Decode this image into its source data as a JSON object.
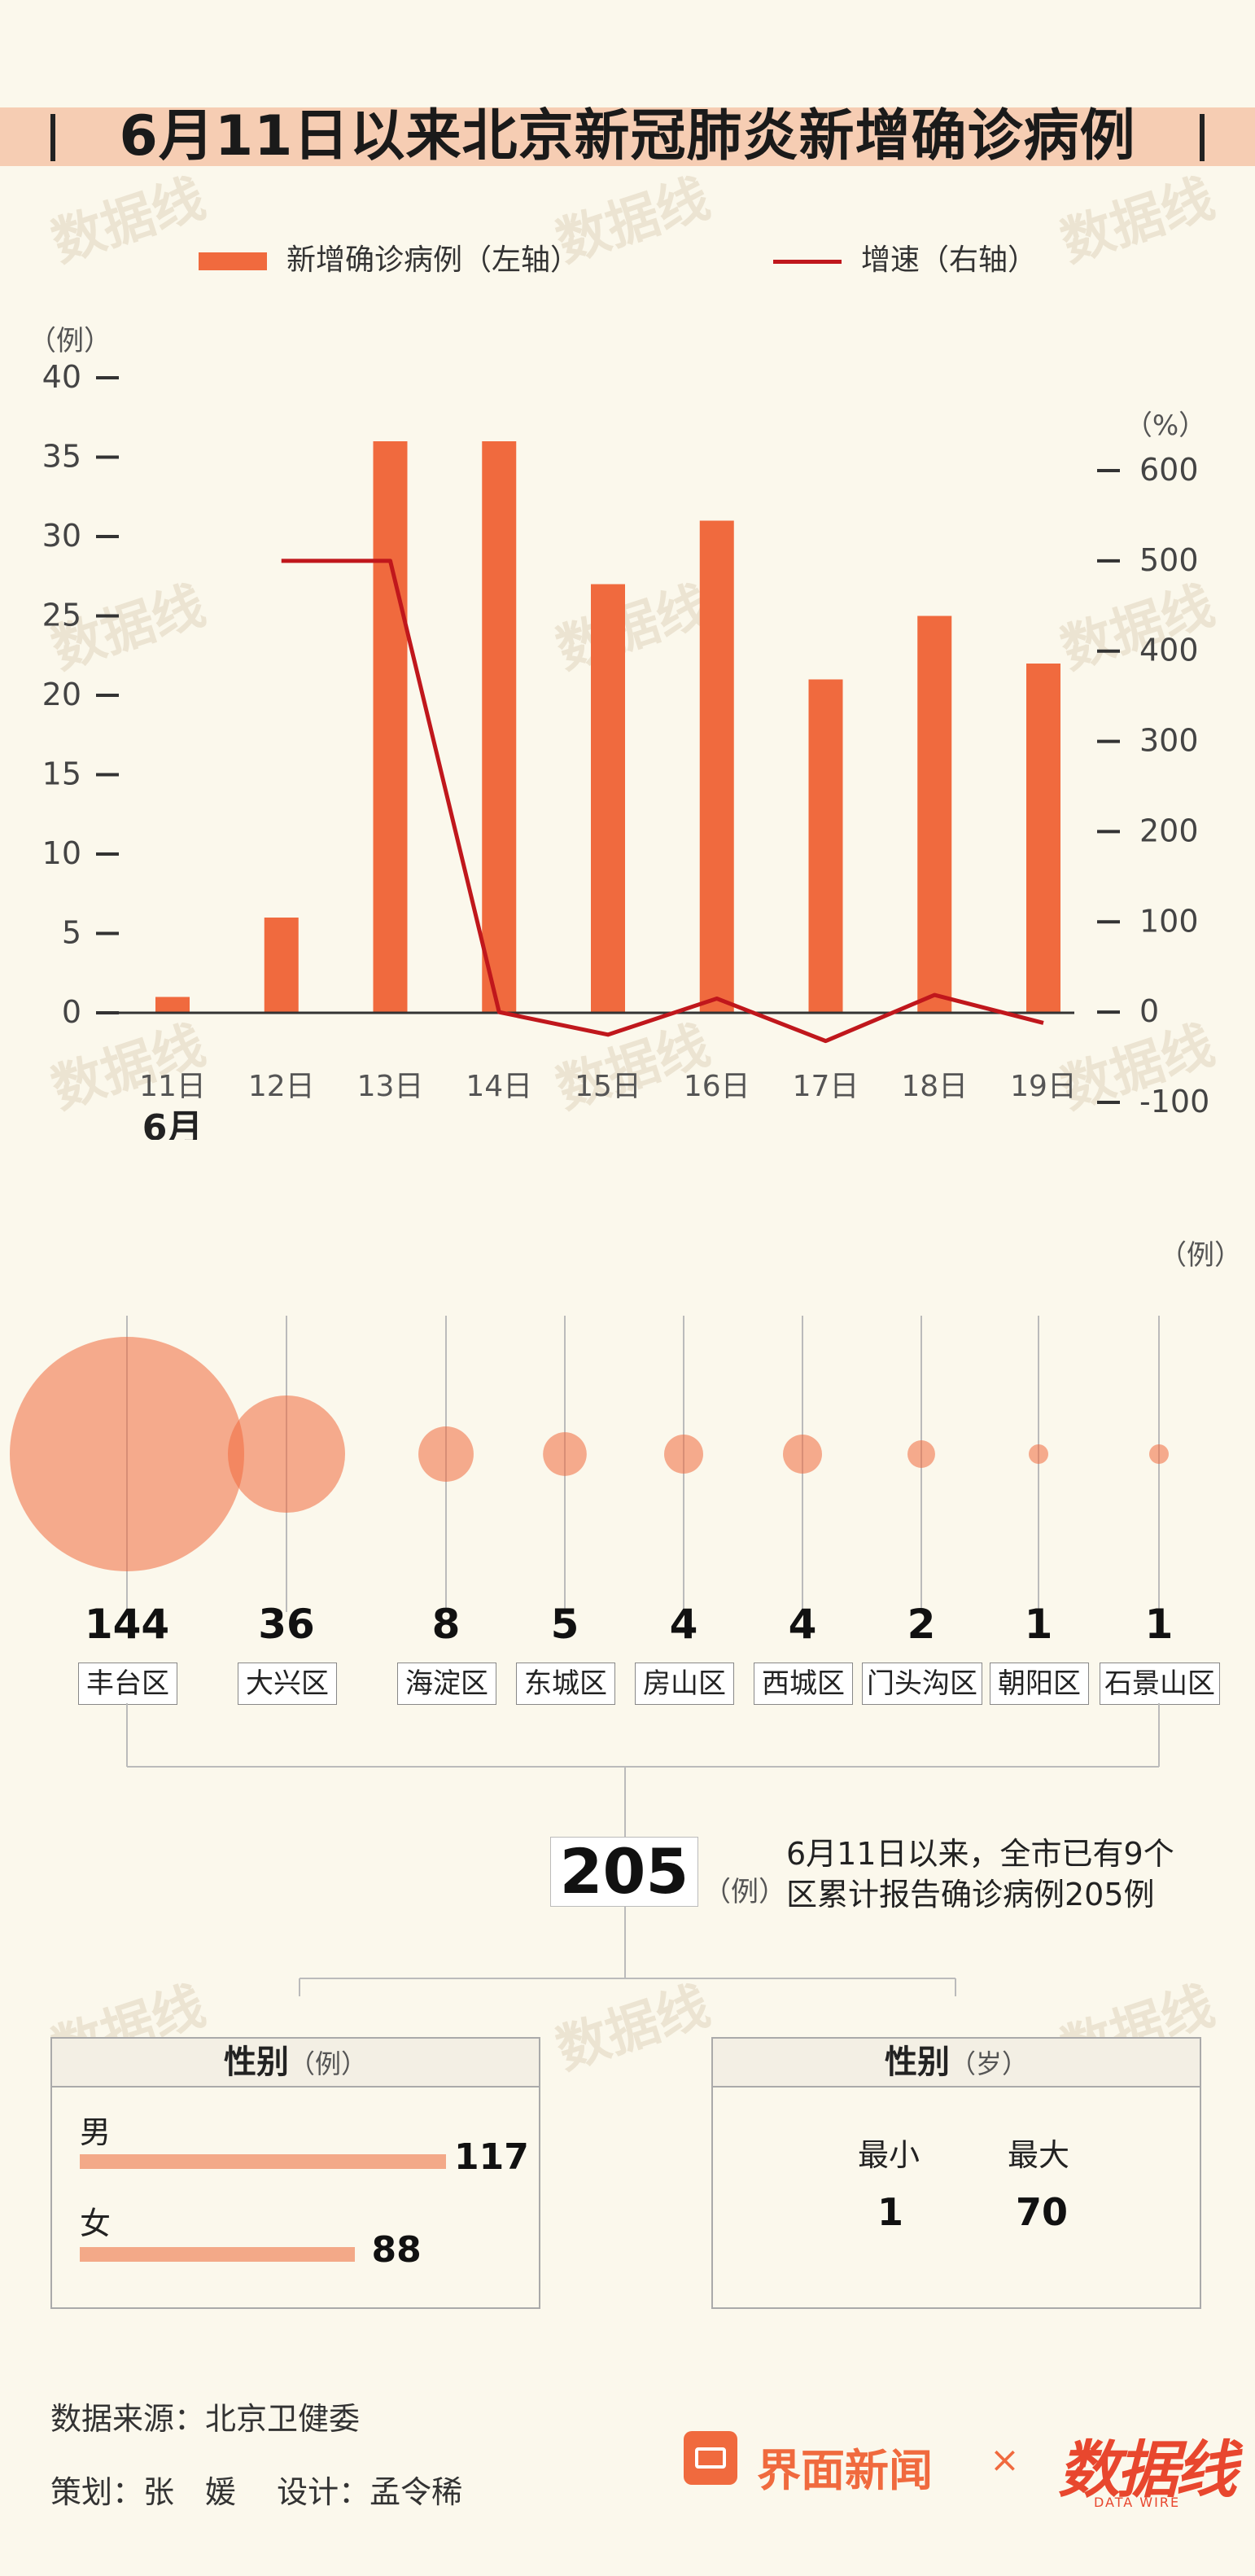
{
  "title": "6月11日以来北京新冠肺炎新增确诊病例",
  "legend": {
    "bar_label": "新增确诊病例（左轴）",
    "line_label": "增速（右轴）"
  },
  "axes": {
    "left_unit": "（例）",
    "right_unit": "（%）",
    "month_label": "6月",
    "district_unit": "（例）"
  },
  "colors": {
    "bar": "#f06a3e",
    "line": "#c0171c",
    "bubble": "#f06a3e",
    "panel_bar": "#f3a988"
  },
  "chart_data": {
    "type": "bar",
    "categories": [
      "11日",
      "12日",
      "13日",
      "14日",
      "15日",
      "16日",
      "17日",
      "18日",
      "19日"
    ],
    "series": [
      {
        "name": "新增确诊病例（左轴）",
        "axis": "left",
        "type": "bar",
        "values": [
          1,
          6,
          36,
          36,
          27,
          31,
          21,
          25,
          22
        ]
      },
      {
        "name": "增速（右轴）",
        "axis": "right",
        "type": "line",
        "values": [
          null,
          500,
          500,
          0,
          -25,
          15,
          -32,
          19,
          -12
        ]
      }
    ],
    "left_ticks": [
      0,
      5,
      10,
      15,
      20,
      25,
      30,
      35,
      40
    ],
    "right_ticks": [
      -100,
      0,
      100,
      200,
      300,
      400,
      500,
      600
    ],
    "ylim_left": [
      0,
      40
    ],
    "ylim_right": [
      -100,
      600
    ]
  },
  "districts": [
    {
      "name": "丰台区",
      "value": "144",
      "num": 144
    },
    {
      "name": "大兴区",
      "value": "36",
      "num": 36
    },
    {
      "name": "海淀区",
      "value": "8",
      "num": 8
    },
    {
      "name": "东城区",
      "value": "5",
      "num": 5
    },
    {
      "name": "房山区",
      "value": "4",
      "num": 4
    },
    {
      "name": "西城区",
      "value": "4",
      "num": 4
    },
    {
      "name": "门头沟区",
      "value": "2",
      "num": 2
    },
    {
      "name": "朝阳区",
      "value": "1",
      "num": 1
    },
    {
      "name": "石景山区",
      "value": "1",
      "num": 1
    }
  ],
  "total": {
    "value": "205",
    "unit": "（例）",
    "note_line1": "6月11日以来，全市已有9个",
    "note_line2": "区累计报告确诊病例205例"
  },
  "gender_panel": {
    "title": "性别",
    "unit": "（例）",
    "male_label": "男",
    "male_value": "117",
    "male_num": 117,
    "female_label": "女",
    "female_value": "88",
    "female_num": 88
  },
  "age_panel": {
    "title": "性别",
    "unit": "（岁）",
    "min_label": "最小",
    "min_value": "1",
    "max_label": "最大",
    "max_value": "70"
  },
  "footer": {
    "source": "数据来源：北京卫健委",
    "credits": "策划：张　媛　 设计：孟令稀"
  },
  "brand": {
    "name": "界面新闻",
    "times": "×",
    "partner": "数据线",
    "partner_sub": "DATA WIRE"
  }
}
